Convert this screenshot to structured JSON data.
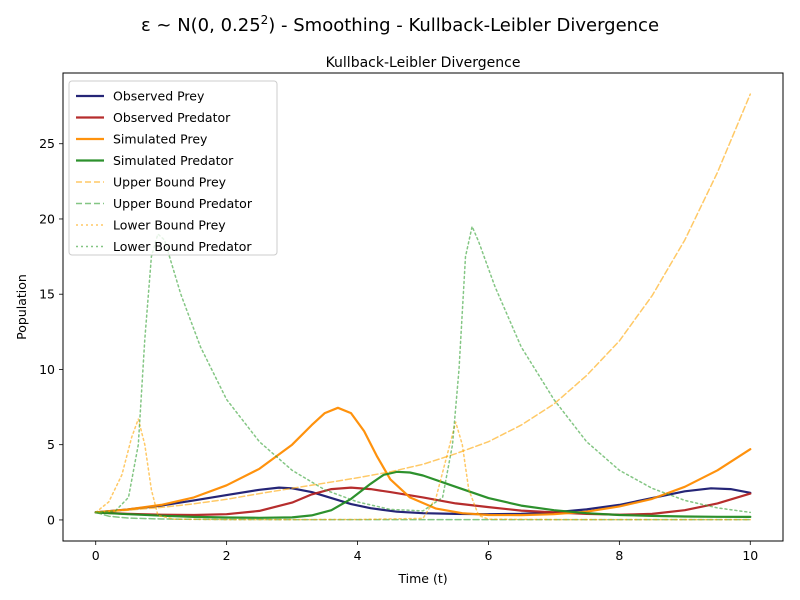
{
  "figure": {
    "suptitle_prefix": "ε ~ N(0, 0.25",
    "suptitle_exp": "2",
    "suptitle_suffix": ") - Smoothing - Kullback-Leibler Divergence"
  },
  "chart_data": {
    "type": "line",
    "title": "Kullback-Leibler Divergence",
    "xlabel": "Time (t)",
    "ylabel": "Population",
    "xlim": [
      -0.5,
      10.5
    ],
    "ylim": [
      -1.4,
      29.7
    ],
    "xticks": [
      0,
      2,
      4,
      6,
      8,
      10
    ],
    "yticks": [
      0,
      5,
      10,
      15,
      20,
      25
    ],
    "grid": false,
    "legend_position": "top-left",
    "series": [
      {
        "name": "Observed Prey",
        "color": "#191970",
        "style": "solid",
        "x": [
          0,
          0.5,
          1,
          1.5,
          2,
          2.5,
          2.8,
          3,
          3.3,
          3.6,
          3.9,
          4.2,
          4.6,
          5,
          5.5,
          6,
          6.5,
          7,
          7.5,
          8,
          8.5,
          9,
          9.4,
          9.7,
          10
        ],
        "y": [
          0.5,
          0.7,
          0.95,
          1.3,
          1.65,
          2.0,
          2.15,
          2.1,
          1.85,
          1.45,
          1.05,
          0.78,
          0.55,
          0.45,
          0.4,
          0.38,
          0.4,
          0.5,
          0.7,
          1.0,
          1.45,
          1.9,
          2.1,
          2.05,
          1.8
        ]
      },
      {
        "name": "Observed Predator",
        "color": "#B22222",
        "style": "solid",
        "x": [
          0,
          0.5,
          1,
          1.5,
          2,
          2.5,
          3,
          3.3,
          3.6,
          3.9,
          4.2,
          4.5,
          5,
          5.5,
          6,
          6.5,
          7,
          7.5,
          8,
          8.5,
          9,
          9.5,
          10
        ],
        "y": [
          0.5,
          0.4,
          0.35,
          0.33,
          0.38,
          0.6,
          1.15,
          1.7,
          2.05,
          2.15,
          2.05,
          1.85,
          1.5,
          1.1,
          0.85,
          0.62,
          0.5,
          0.4,
          0.35,
          0.4,
          0.65,
          1.1,
          1.75
        ]
      },
      {
        "name": "Simulated Prey",
        "color": "#FF8C00",
        "style": "solid",
        "x": [
          0,
          0.5,
          1,
          1.5,
          2,
          2.5,
          3,
          3.3,
          3.5,
          3.7,
          3.9,
          4.1,
          4.3,
          4.5,
          4.8,
          5.2,
          5.6,
          6,
          6.5,
          7,
          7.5,
          8,
          8.5,
          9,
          9.5,
          10
        ],
        "y": [
          0.5,
          0.7,
          1.0,
          1.5,
          2.3,
          3.4,
          5.0,
          6.3,
          7.1,
          7.45,
          7.1,
          5.9,
          4.2,
          2.7,
          1.5,
          0.75,
          0.45,
          0.33,
          0.32,
          0.38,
          0.55,
          0.9,
          1.4,
          2.2,
          3.3,
          4.7
        ]
      },
      {
        "name": "Simulated Predator",
        "color": "#228B22",
        "style": "solid",
        "x": [
          0,
          0.5,
          1,
          1.5,
          2,
          2.5,
          3,
          3.3,
          3.6,
          3.9,
          4.2,
          4.4,
          4.6,
          4.8,
          5,
          5.5,
          6,
          6.5,
          7,
          7.5,
          8,
          8.5,
          9,
          9.5,
          10
        ],
        "y": [
          0.5,
          0.38,
          0.28,
          0.2,
          0.16,
          0.14,
          0.17,
          0.3,
          0.65,
          1.4,
          2.4,
          3.0,
          3.2,
          3.15,
          2.95,
          2.2,
          1.45,
          0.95,
          0.65,
          0.45,
          0.33,
          0.27,
          0.23,
          0.21,
          0.2
        ]
      },
      {
        "name": "Upper Bound Prey",
        "color": "#FFA500",
        "style": "dashed",
        "x": [
          0,
          0.5,
          1,
          1.5,
          2,
          2.5,
          3,
          3.5,
          4,
          4.5,
          5,
          5.5,
          6,
          6.5,
          7,
          7.5,
          8,
          8.5,
          9,
          9.5,
          10
        ],
        "y": [
          0.5,
          0.65,
          0.83,
          1.07,
          1.37,
          1.75,
          2.1,
          2.45,
          2.8,
          3.2,
          3.7,
          4.4,
          5.2,
          6.3,
          7.7,
          9.6,
          11.9,
          14.9,
          18.6,
          23.1,
          28.3
        ]
      },
      {
        "name": "Upper Bound Predator",
        "color": "#32A032",
        "style": "dashed",
        "x": [
          0,
          0.2,
          0.5,
          1,
          1.5,
          2,
          3,
          4,
          5,
          6,
          7,
          8,
          9,
          10
        ],
        "y": [
          0.5,
          0.25,
          0.12,
          0.06,
          0.04,
          0.03,
          0.02,
          0.02,
          0.02,
          0.02,
          0.02,
          0.02,
          0.02,
          0.02
        ]
      },
      {
        "name": "Lower Bound Prey",
        "color": "#FFA500",
        "style": "dotted",
        "x": [
          0,
          0.2,
          0.4,
          0.55,
          0.65,
          0.75,
          0.85,
          0.95,
          1.2,
          2,
          3,
          4,
          5,
          5.2,
          5.35,
          5.5,
          5.6,
          5.7,
          5.85,
          6,
          7,
          8,
          9,
          10
        ],
        "y": [
          0.5,
          1.2,
          3.0,
          5.5,
          6.7,
          5.0,
          2.0,
          0.3,
          0.05,
          0.02,
          0.02,
          0.03,
          0.1,
          1.5,
          4.0,
          6.5,
          5.0,
          2.0,
          0.3,
          0.05,
          0.02,
          0.02,
          0.02,
          0.02
        ]
      },
      {
        "name": "Lower Bound Predator",
        "color": "#32A032",
        "style": "dotted",
        "x": [
          0,
          0.3,
          0.5,
          0.65,
          0.75,
          0.85,
          0.95,
          1.05,
          1.3,
          1.6,
          2,
          2.5,
          3,
          3.5,
          4,
          4.5,
          5,
          5.3,
          5.45,
          5.55,
          5.65,
          5.75,
          5.85,
          6.1,
          6.5,
          7,
          7.5,
          8,
          8.5,
          9,
          9.5,
          10
        ],
        "y": [
          0.5,
          0.6,
          1.5,
          5.0,
          12.0,
          17.5,
          19.0,
          18.6,
          15.0,
          11.5,
          8.0,
          5.2,
          3.3,
          2.0,
          1.2,
          0.7,
          0.6,
          1.5,
          5.0,
          10.0,
          17.5,
          19.5,
          18.5,
          15.5,
          11.5,
          8.0,
          5.2,
          3.3,
          2.1,
          1.3,
          0.8,
          0.5
        ]
      }
    ]
  }
}
